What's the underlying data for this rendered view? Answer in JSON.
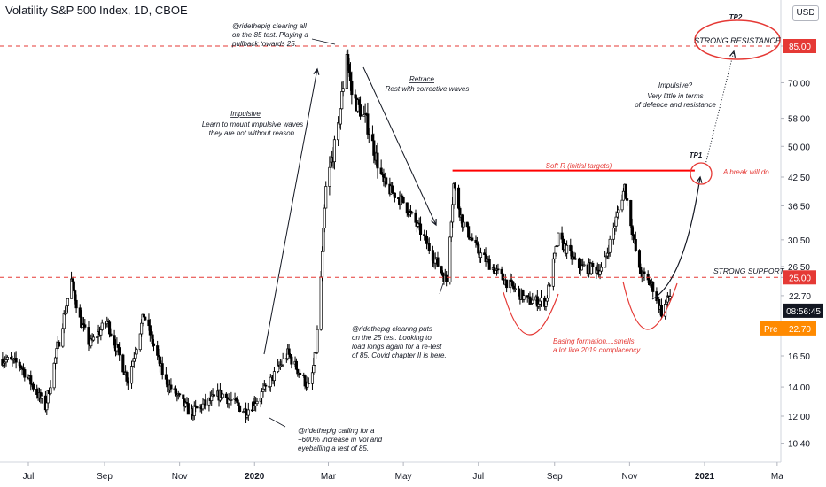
{
  "header": {
    "title": "Volatility S&P 500 Index, 1D, CBOE",
    "currency_button": "USD"
  },
  "colors": {
    "candle": "#000000",
    "support_line": "#e53935",
    "soft_resistance": "#ff0000",
    "price_label": "#e53935",
    "pre_label": "#ff8a00",
    "countdown_bg": "#131722"
  },
  "chart_data": {
    "type": "candlestick",
    "symbol": "Volatility S&P 500 Index",
    "interval": "1D",
    "exchange": "CBOE",
    "y_scale": "log",
    "y_axis_ticks": [
      10.4,
      12.0,
      14.0,
      16.5,
      19.0,
      22.7,
      25.0,
      26.5,
      30.5,
      36.5,
      42.5,
      50.0,
      58.0,
      70.0,
      85.0
    ],
    "y_axis_tick_labels": [
      "10.40",
      "12.00",
      "14.00",
      "16.50",
      "",
      "",
      "",
      "26.50",
      "30.50",
      "36.50",
      "42.50",
      "50.00",
      "58.00",
      "70.00",
      ""
    ],
    "x_axis_ticks": [
      {
        "date": "2019-07-01",
        "label": "Jul",
        "bold": false
      },
      {
        "date": "2019-09-01",
        "label": "Sep",
        "bold": false
      },
      {
        "date": "2019-11-01",
        "label": "Nov",
        "bold": false
      },
      {
        "date": "2020-01-01",
        "label": "2020",
        "bold": true
      },
      {
        "date": "2020-03-01",
        "label": "Mar",
        "bold": false
      },
      {
        "date": "2020-05-01",
        "label": "May",
        "bold": false
      },
      {
        "date": "2020-07-01",
        "label": "Jul",
        "bold": false
      },
      {
        "date": "2020-09-01",
        "label": "Sep",
        "bold": false
      },
      {
        "date": "2020-11-01",
        "label": "Nov",
        "bold": false
      },
      {
        "date": "2021-01-01",
        "label": "2021",
        "bold": true
      },
      {
        "date": "2021-03-01",
        "label": "Ma",
        "bold": false
      }
    ],
    "series_anchor_points": [
      {
        "date": "2019-06-10",
        "close": 16.2
      },
      {
        "date": "2019-06-24",
        "close": 15.8
      },
      {
        "date": "2019-07-15",
        "close": 12.6
      },
      {
        "date": "2019-08-05",
        "close": 24.6
      },
      {
        "date": "2019-08-12",
        "close": 20.0
      },
      {
        "date": "2019-08-20",
        "close": 17.5
      },
      {
        "date": "2019-09-03",
        "close": 19.8
      },
      {
        "date": "2019-09-20",
        "close": 14.5
      },
      {
        "date": "2019-10-03",
        "close": 20.5
      },
      {
        "date": "2019-10-20",
        "close": 14.5
      },
      {
        "date": "2019-11-10",
        "close": 12.2
      },
      {
        "date": "2019-12-05",
        "close": 13.5
      },
      {
        "date": "2019-12-25",
        "close": 12.3
      },
      {
        "date": "2020-01-08",
        "close": 13.6
      },
      {
        "date": "2020-01-28",
        "close": 16.7
      },
      {
        "date": "2020-02-15",
        "close": 13.8
      },
      {
        "date": "2020-02-20",
        "close": 17.0
      },
      {
        "date": "2020-02-24",
        "close": 25.0
      },
      {
        "date": "2020-02-28",
        "close": 40.0
      },
      {
        "date": "2020-03-09",
        "close": 54.5
      },
      {
        "date": "2020-03-16",
        "close": 82.7
      },
      {
        "date": "2020-03-20",
        "close": 66.0
      },
      {
        "date": "2020-04-01",
        "close": 57.0
      },
      {
        "date": "2020-04-15",
        "close": 40.8
      },
      {
        "date": "2020-05-01",
        "close": 37.2
      },
      {
        "date": "2020-05-15",
        "close": 31.9
      },
      {
        "date": "2020-06-05",
        "close": 24.5
      },
      {
        "date": "2020-06-11",
        "close": 40.8
      },
      {
        "date": "2020-06-18",
        "close": 33.5
      },
      {
        "date": "2020-07-01",
        "close": 28.6
      },
      {
        "date": "2020-07-20",
        "close": 25.0
      },
      {
        "date": "2020-08-10",
        "close": 22.1
      },
      {
        "date": "2020-08-25",
        "close": 22.0
      },
      {
        "date": "2020-09-04",
        "close": 30.8
      },
      {
        "date": "2020-09-20",
        "close": 26.5
      },
      {
        "date": "2020-10-10",
        "close": 26.0
      },
      {
        "date": "2020-10-28",
        "close": 40.3
      },
      {
        "date": "2020-11-09",
        "close": 25.8
      },
      {
        "date": "2020-11-20",
        "close": 23.7
      },
      {
        "date": "2020-11-27",
        "close": 20.8
      },
      {
        "date": "2020-12-04",
        "close": 22.7
      }
    ],
    "horizontal_levels": [
      {
        "price": 85.0,
        "label": "STRONG RESISTANCE",
        "style": "dashed",
        "color": "#e53935"
      },
      {
        "price": 25.0,
        "label": "STRONG SUPPORT",
        "style": "dashed",
        "color": "#e53935"
      },
      {
        "price": 44.0,
        "label": "Soft R (initial targets)",
        "style": "solid",
        "color": "#ff0000"
      }
    ],
    "price_labels": [
      {
        "price": 85.0,
        "text": "85.00"
      },
      {
        "price": 25.0,
        "text": "25.00"
      },
      {
        "price": 22.7,
        "text": "22.70"
      }
    ],
    "last_price": 22.7,
    "countdown": "08:56:45",
    "pre_market": {
      "label": "Pre",
      "value": "22.70"
    }
  },
  "annotations": {
    "top_note": [
      "@ridethepig clearing all",
      "on the 85 test. Playing a",
      "pullback towards 25."
    ],
    "impulsive_title": "Impulsive",
    "impulsive_note": [
      "Learn to mount impulsive waves",
      "they are not without reason."
    ],
    "retrace_title": "Retrace",
    "retrace_note": [
      "Rest with corrective waves"
    ],
    "impulsive_q_title": "Impulsive?",
    "impulsive_q_note": [
      "Very little in terms",
      "of defence and resistance"
    ],
    "tp2": "TP2",
    "tp1": "TP1",
    "strong_resistance": "STRONG RESISTANCE",
    "soft_r": "Soft R (initial targets)",
    "break_note": "A break will do",
    "strong_support": "STRONG SUPPORT",
    "puts_note": [
      "@ridethepig clearing puts",
      "on the 25 test. Looking to",
      "load longs again for a re-test",
      "of 85. Covid chapter II is here."
    ],
    "basing_note": [
      "Basing formation....smells",
      "a lot like 2019 complacency."
    ],
    "calling_note": [
      "@ridethepig calling for a",
      "+600% increase in Vol and",
      "eyeballing a test of 85."
    ]
  }
}
